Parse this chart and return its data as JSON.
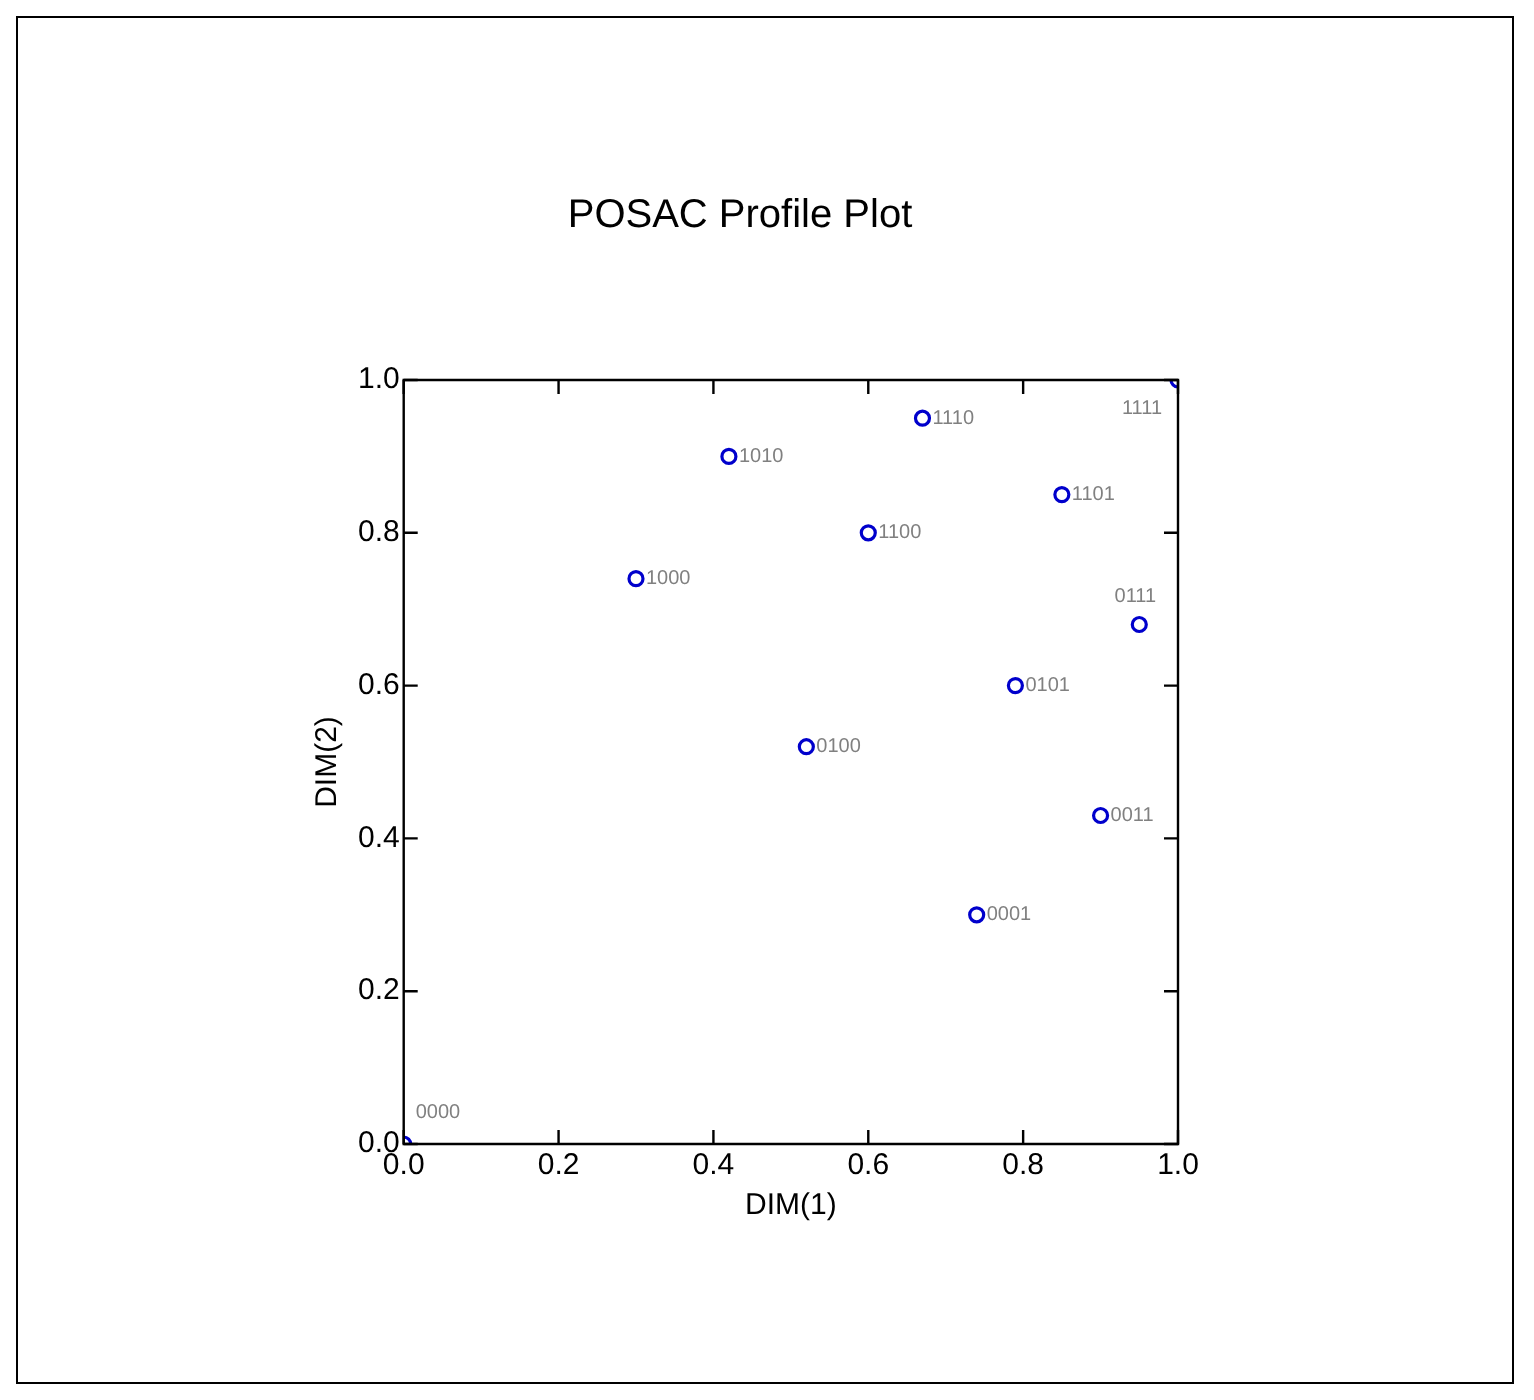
{
  "chart_data": {
    "type": "scatter",
    "title": "POSAC Profile Plot",
    "xlabel": "DIM(1)",
    "ylabel": "DIM(2)",
    "x": [
      0,
      0.3,
      0.52,
      0.6,
      0.42,
      0.67,
      0.85,
      1,
      0.74,
      0.79,
      0.9,
      0.95
    ],
    "series": [
      {
        "color": "#0000cc",
        "values": [
          0,
          0.74,
          0.52,
          0.8,
          0.9,
          0.95,
          0.85,
          1,
          0.3,
          0.6,
          0.43,
          0.68
        ]
      }
    ],
    "annotations": [
      {
        "text": "0000",
        "x": 0,
        "y": 0
      },
      {
        "text": "1000",
        "x": 0.3,
        "y": 0.74
      },
      {
        "text": "0100",
        "x": 0.52,
        "y": 0.52
      },
      {
        "text": "1100",
        "x": 0.6,
        "y": 0.8
      },
      {
        "text": "1010",
        "x": 0.42,
        "y": 0.9
      },
      {
        "text": "1110",
        "x": 0.67,
        "y": 0.95
      },
      {
        "text": "1101",
        "x": 0.85,
        "y": 0.85
      },
      {
        "text": "1111",
        "x": 1,
        "y": 1
      },
      {
        "text": "0001",
        "x": 0.74,
        "y": 0.3
      },
      {
        "text": "0101",
        "x": 0.79,
        "y": 0.6
      },
      {
        "text": "0011",
        "x": 0.9,
        "y": 0.43
      },
      {
        "text": "0111",
        "x": 0.95,
        "y": 0.68
      }
    ],
    "xlim": [
      0,
      1
    ],
    "ylim": [
      0,
      1
    ],
    "xticks": [
      {
        "value": 0,
        "label": "0.0"
      },
      0.2,
      0.4,
      0.6,
      0.8,
      {
        "value": 1,
        "label": "1.0"
      }
    ],
    "yticks": [
      {
        "value": 0,
        "label": "0.0"
      },
      0.2,
      0.4,
      0.6,
      0.8,
      {
        "value": 1,
        "label": "1.0"
      }
    ],
    "grid": false,
    "legend": false,
    "marker": "circle"
  }
}
